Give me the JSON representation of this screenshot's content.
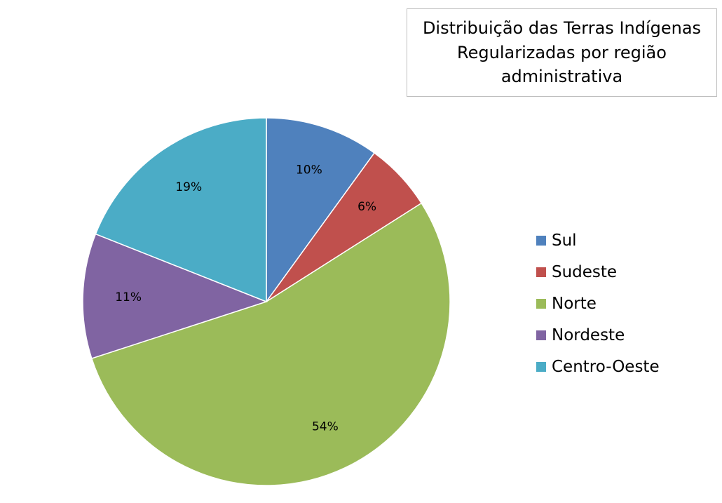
{
  "chart_data": {
    "type": "pie",
    "title": "Distribuição das Terras Indígenas Regularizadas por região administrativa",
    "title_lines": [
      "Distribuição das Terras Indígenas",
      "Regularizadas por região",
      "administrativa"
    ],
    "categories": [
      "Sul",
      "Sudeste",
      "Norte",
      "Nordeste",
      "Centro-Oeste"
    ],
    "values": [
      10,
      6,
      54,
      11,
      19
    ],
    "data_labels": [
      "10%",
      "6%",
      "54%",
      "11%",
      "19%"
    ],
    "colors": [
      "#4f81bd",
      "#c0504d",
      "#9bbb59",
      "#8064a2",
      "#4bacc6"
    ],
    "legend_position": "right"
  }
}
